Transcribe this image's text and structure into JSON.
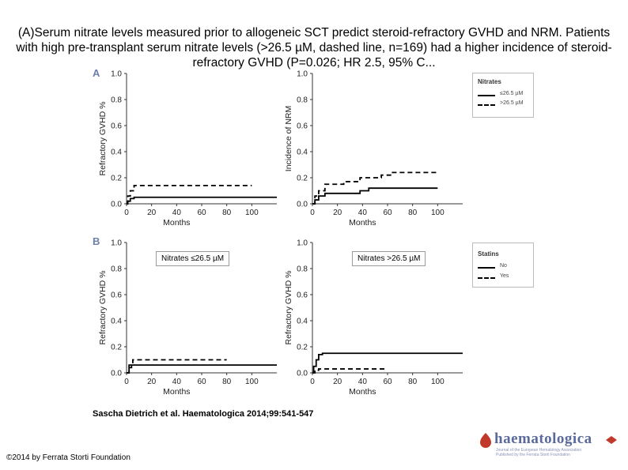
{
  "caption": "(A)Serum nitrate levels measured prior to allogeneic SCT predict steroid-refractory GVHD and NRM. Patients with high pre-transplant serum nitrate levels (>26.5 µM, dashed line, n=169) had a higher incidence of steroid-refractory GVHD (P=0.026; HR 2.5, 95% C...",
  "panel_a_label": "A",
  "panel_b_label": "B",
  "citation": "Sascha Dietrich et al. Haematologica 2014;99:541-547",
  "copyright": "©2014 by Ferrata Storti Foundation",
  "logo": {
    "word": "haematologica",
    "line1": "Journal of the European Hematology Association",
    "line2": "Published by the Ferrata Storti Foundation"
  },
  "legend_nitrates": {
    "title": "Nitrates",
    "items": [
      "≤26.5 µM",
      ">26.5 µM"
    ]
  },
  "legend_statins": {
    "title": "Statins",
    "items": [
      "No",
      "Yes"
    ]
  },
  "box_b1": "Nitrates ≤26.5 µM",
  "box_b2": "Nitrates >26.5 µM",
  "chart_data": [
    {
      "id": "a1",
      "type": "line",
      "ylabel": "Refractory GVHD %",
      "xlabel": "Months",
      "xlim": [
        0,
        120
      ],
      "ylim": [
        0,
        1.0
      ],
      "xticks": [
        0,
        20,
        40,
        60,
        80,
        100
      ],
      "yticks": [
        "0.0",
        "0.2",
        "0.4",
        "0.6",
        "0.8",
        "1.0"
      ],
      "series": [
        {
          "style": "solid",
          "points": [
            [
              0,
              0
            ],
            [
              1,
              0.02
            ],
            [
              3,
              0.04
            ],
            [
              6,
              0.05
            ],
            [
              120,
              0.05
            ]
          ]
        },
        {
          "style": "dashed",
          "points": [
            [
              0,
              0
            ],
            [
              1,
              0.06
            ],
            [
              3,
              0.1
            ],
            [
              6,
              0.14
            ],
            [
              100,
              0.14
            ]
          ]
        }
      ]
    },
    {
      "id": "a2",
      "type": "line",
      "ylabel": "Incidence of NRM",
      "xlabel": "Months",
      "xlim": [
        0,
        120
      ],
      "ylim": [
        0,
        1.0
      ],
      "xticks": [
        0,
        20,
        40,
        60,
        80,
        100
      ],
      "yticks": [
        "0.0",
        "0.2",
        "0.4",
        "0.6",
        "0.8",
        "1.0"
      ],
      "series": [
        {
          "style": "solid",
          "points": [
            [
              0,
              0
            ],
            [
              2,
              0.03
            ],
            [
              5,
              0.06
            ],
            [
              10,
              0.08
            ],
            [
              30,
              0.08
            ],
            [
              38,
              0.1
            ],
            [
              45,
              0.12
            ],
            [
              100,
              0.12
            ]
          ]
        },
        {
          "style": "dashed",
          "points": [
            [
              0,
              0
            ],
            [
              2,
              0.06
            ],
            [
              5,
              0.1
            ],
            [
              10,
              0.15
            ],
            [
              25,
              0.17
            ],
            [
              38,
              0.2
            ],
            [
              55,
              0.22
            ],
            [
              63,
              0.24
            ],
            [
              100,
              0.24
            ]
          ]
        }
      ]
    },
    {
      "id": "b1",
      "type": "line",
      "ylabel": "Refractory GVHD %",
      "xlabel": "Months",
      "xlim": [
        0,
        120
      ],
      "ylim": [
        0,
        1.0
      ],
      "xticks": [
        0,
        20,
        40,
        60,
        80,
        100
      ],
      "yticks": [
        "0.0",
        "0.2",
        "0.4",
        "0.6",
        "0.8",
        "1.0"
      ],
      "series": [
        {
          "style": "solid",
          "points": [
            [
              0,
              0
            ],
            [
              2,
              0.04
            ],
            [
              4,
              0.06
            ],
            [
              120,
              0.06
            ]
          ]
        },
        {
          "style": "dashed",
          "points": [
            [
              0,
              0
            ],
            [
              2,
              0.06
            ],
            [
              5,
              0.1
            ],
            [
              80,
              0.1
            ]
          ]
        }
      ]
    },
    {
      "id": "b2",
      "type": "line",
      "ylabel": "Refractory GVHD %",
      "xlabel": "Months",
      "xlim": [
        0,
        120
      ],
      "ylim": [
        0,
        1.0
      ],
      "xticks": [
        0,
        20,
        40,
        60,
        80,
        100
      ],
      "yticks": [
        "0.0",
        "0.2",
        "0.4",
        "0.6",
        "0.8",
        "1.0"
      ],
      "series": [
        {
          "style": "solid",
          "points": [
            [
              0,
              0
            ],
            [
              1,
              0.05
            ],
            [
              3,
              0.1
            ],
            [
              5,
              0.14
            ],
            [
              8,
              0.15
            ],
            [
              120,
              0.15
            ]
          ]
        },
        {
          "style": "dashed",
          "points": [
            [
              0,
              0
            ],
            [
              2,
              0.02
            ],
            [
              5,
              0.03
            ],
            [
              60,
              0.03
            ]
          ]
        }
      ]
    }
  ]
}
